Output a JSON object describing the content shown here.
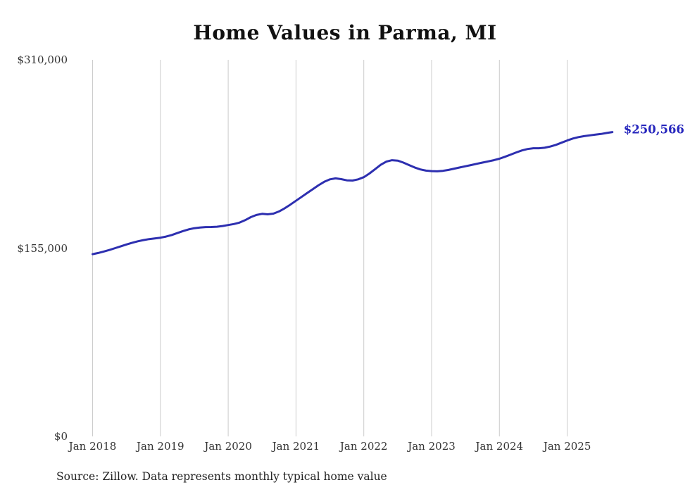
{
  "title": "Home Values in Parma, MI",
  "source_note": "Source: Zillow. Data represents monthly typical home value",
  "end_label": "$250,566",
  "colors": {
    "line": "#2d2fb0",
    "end_label": "#2626bd",
    "grid": "#cccccc",
    "axis_text": "#333333",
    "title": "#111111"
  },
  "chart_data": {
    "type": "line",
    "title": "Home Values in Parma, MI",
    "xlabel": "",
    "ylabel": "",
    "ylim": [
      0,
      310000
    ],
    "grid": "vertical-only",
    "legend": "none",
    "y_ticks": [
      {
        "label": "$310,000",
        "value": 310000
      },
      {
        "label": "$155,000",
        "value": 155000
      },
      {
        "label": "$0",
        "value": 0
      }
    ],
    "x_tick_labels": [
      "Jan 2018",
      "Jan 2019",
      "Jan 2020",
      "Jan 2021",
      "Jan 2022",
      "Jan 2023",
      "Jan 2024",
      "Jan 2025"
    ],
    "x_start_month": "2018-01",
    "x_interval": "monthly",
    "end_value": 250566,
    "end_value_label": "$250,566",
    "series": [
      {
        "name": "Typical home value",
        "values": [
          150000,
          151000,
          152200,
          153500,
          155000,
          156500,
          158000,
          159400,
          160600,
          161600,
          162400,
          163000,
          163600,
          164500,
          165800,
          167400,
          169000,
          170400,
          171400,
          172000,
          172300,
          172400,
          172600,
          173200,
          174000,
          174800,
          176000,
          178000,
          180500,
          182300,
          183200,
          182800,
          183400,
          185200,
          187800,
          190800,
          194000,
          197200,
          200400,
          203600,
          206800,
          209600,
          211600,
          212400,
          211800,
          210800,
          210600,
          211600,
          213400,
          216400,
          220000,
          223600,
          226200,
          227400,
          227000,
          225400,
          223400,
          221400,
          219800,
          218800,
          218400,
          218200,
          218600,
          219400,
          220400,
          221400,
          222400,
          223400,
          224400,
          225400,
          226400,
          227400,
          228600,
          230200,
          232000,
          233800,
          235400,
          236600,
          237200,
          237200,
          237600,
          238600,
          240000,
          241800,
          243600,
          245200,
          246400,
          247200,
          247800,
          248400,
          249000,
          249800,
          250566
        ]
      }
    ]
  }
}
